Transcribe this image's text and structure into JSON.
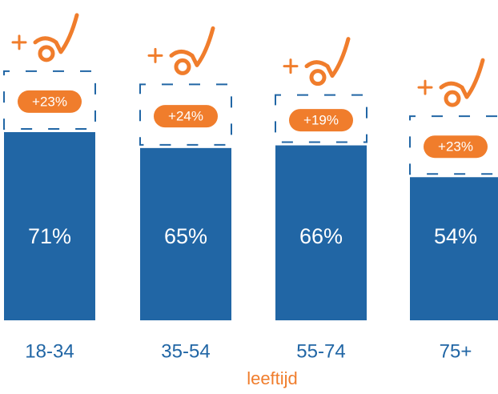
{
  "chart_data": {
    "type": "bar",
    "stacked": true,
    "categories": [
      "18-34",
      "35-54",
      "55-74",
      "75+"
    ],
    "series": [
      {
        "color": "#2166a5",
        "values": [
          71,
          65,
          66,
          54
        ],
        "value_labels": [
          "71%",
          "65%",
          "66%",
          "54%"
        ]
      },
      {
        "color": "#f07d2c",
        "values": [
          23,
          24,
          19,
          23
        ],
        "value_labels": [
          "+23%",
          "+24%",
          "+19%",
          "+23%"
        ]
      }
    ],
    "ylim": [
      0,
      100
    ],
    "x_label": "leeftijd"
  }
}
